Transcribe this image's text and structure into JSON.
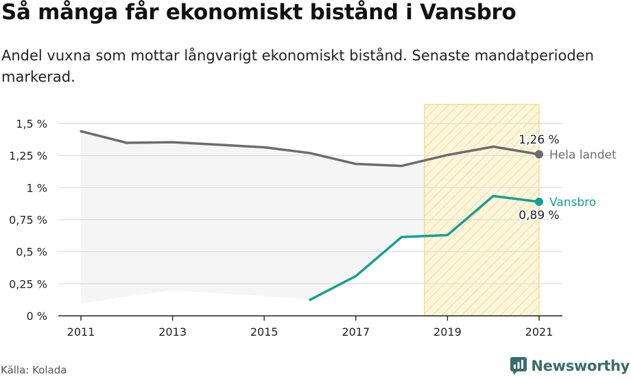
{
  "title": "Så många får ekonomiskt bistånd i Vansbro",
  "subtitle": "Andel vuxna som mottar långvarigt ekonomiskt bistånd. Senaste mandatperioden markerad.",
  "source": "Källa: Kolada",
  "logo_text": "Newsworthy",
  "chart_data": {
    "type": "line",
    "x": [
      2011,
      2012,
      2013,
      2014,
      2015,
      2016,
      2017,
      2018,
      2019,
      2020,
      2021
    ],
    "x_ticks": [
      2011,
      2013,
      2015,
      2017,
      2019,
      2021
    ],
    "x_tick_labels": [
      "2011",
      "2013",
      "2015",
      "2017",
      "2019",
      "2021"
    ],
    "ylim": [
      0,
      1.5
    ],
    "y_ticks": [
      0,
      0.25,
      0.5,
      0.75,
      1,
      1.25,
      1.5
    ],
    "y_tick_labels": [
      "0 %",
      "0,25 %",
      "0,5 %",
      "0,75 %",
      "1 %",
      "1,25 %",
      "1,5 %"
    ],
    "grid": true,
    "highlight": {
      "from": 2018.5,
      "to": 2021,
      "color": "#f5c242"
    },
    "range_band": {
      "color": "#f5f5f5",
      "x": [
        2011,
        2013,
        2016
      ],
      "lower": [
        0.1,
        0.2,
        0.13
      ]
    },
    "series": [
      {
        "name": "Hela landet",
        "color": "#6b6b73",
        "values": [
          1.44,
          1.35,
          1.355,
          1.335,
          1.315,
          1.27,
          1.185,
          1.17,
          1.255,
          1.32,
          1.26
        ],
        "end_value_label": "1,26 %"
      },
      {
        "name": "Vansbro",
        "color": "#13a095",
        "values": [
          null,
          null,
          null,
          null,
          null,
          0.125,
          0.31,
          0.615,
          0.63,
          0.935,
          0.89
        ],
        "end_value_label": "0,89 %"
      }
    ]
  }
}
